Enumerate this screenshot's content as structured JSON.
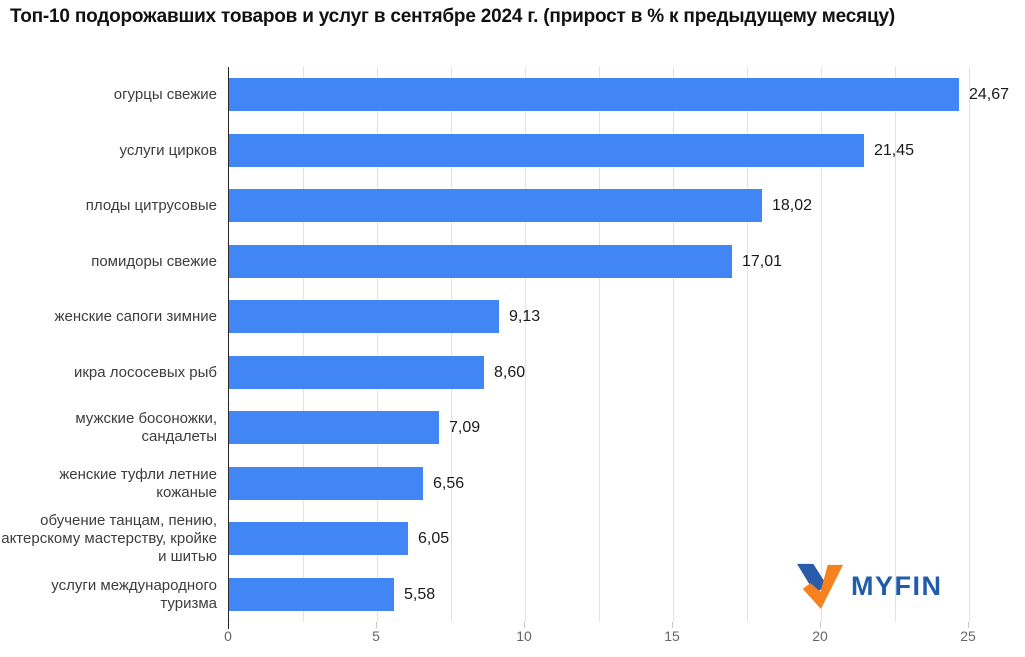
{
  "title": "Топ-10 подорожавших товаров и услуг в сентябре 2024 г. (прирост в % к предыдущему месяцу)",
  "chart_data": {
    "type": "bar",
    "orientation": "horizontal",
    "categories": [
      "огурцы свежие",
      "услуги цирков",
      "плоды цитрусовые",
      "помидоры свежие",
      "женские сапоги зимние",
      "икра лососевых рыб",
      "мужские босоножки, сандалеты",
      "женские туфли летние кожаные",
      "обучение танцам, пению, актерскому мастерству, кройке и шитью",
      "услуги международного туризма"
    ],
    "values": [
      24.67,
      21.45,
      18.02,
      17.01,
      9.13,
      8.6,
      7.09,
      6.56,
      6.05,
      5.58
    ],
    "value_labels": [
      "24,67",
      "21,45",
      "18,02",
      "17,01",
      "9,13",
      "8,60",
      "7,09",
      "6,56",
      "6,05",
      "5,58"
    ],
    "title": "Топ-10 подорожавших товаров и услуг в сентябре 2024 г. (прирост в % к предыдущему месяцу)",
    "xlabel": "",
    "ylabel": "",
    "xlim": [
      0,
      25
    ],
    "x_ticks": [
      0,
      5,
      10,
      15,
      20,
      25
    ],
    "x_tick_labels": [
      "0",
      "5",
      "10",
      "15",
      "20",
      "25"
    ],
    "minor_grid_step": 2.5,
    "grid": true,
    "legend": false,
    "bar_color": "#4285f4"
  },
  "colors": {
    "bar": "#4285f4",
    "gridline": "#e2e2e2",
    "axis": "#262626",
    "title_text": "#111111",
    "category_text": "#3d3d3d",
    "value_text": "#1a1a1a",
    "tick_text": "#666666",
    "logo_blue": "#2b5ca9",
    "logo_orange": "#f5821f",
    "logo_text": "#1f5cab"
  },
  "logo": {
    "text": "MYFIN",
    "mark": "myfin-checkmark"
  }
}
